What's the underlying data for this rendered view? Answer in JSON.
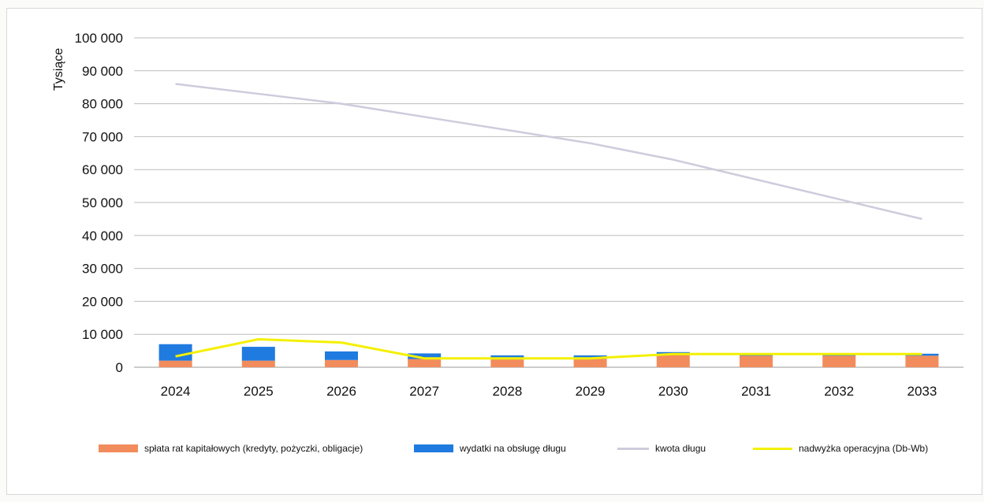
{
  "chart_data": {
    "type": "bar",
    "title": "",
    "xlabel": "",
    "ylabel": "Tysiące",
    "ylim": [
      0,
      100000
    ],
    "yticks": [
      0,
      10000,
      20000,
      30000,
      40000,
      50000,
      60000,
      70000,
      80000,
      90000,
      100000
    ],
    "ytick_labels": [
      "0",
      "10 000",
      "20 000",
      "30 000",
      "40 000",
      "50 000",
      "60 000",
      "70 000",
      "80 000",
      "90 000",
      "100 000"
    ],
    "categories": [
      "2024",
      "2025",
      "2026",
      "2027",
      "2028",
      "2029",
      "2030",
      "2031",
      "2032",
      "2033"
    ],
    "grid": true,
    "legend_position": "bottom",
    "series": [
      {
        "name": "spłata rat kapitałowych (kredyty, pożyczki, obligacje)",
        "type": "bar",
        "stack": "debt",
        "color": "#F28C5C",
        "values": [
          2000,
          2000,
          2200,
          2500,
          2500,
          2600,
          4000,
          3500,
          3500,
          3500
        ]
      },
      {
        "name": "wydatki na obsługę długu",
        "type": "bar",
        "stack": "debt",
        "color": "#1F7BE0",
        "values": [
          5000,
          4200,
          2600,
          1700,
          1100,
          1000,
          600,
          600,
          600,
          600
        ]
      },
      {
        "name": "kwota długu",
        "type": "line",
        "color": "#CFCBDC",
        "values": [
          86000,
          83000,
          80000,
          76000,
          72000,
          68000,
          63000,
          57000,
          51000,
          45000
        ]
      },
      {
        "name": "nadwyżka operacyjna (Db-Wb)",
        "type": "line",
        "color": "#F4F000",
        "values": [
          3300,
          8500,
          7500,
          2700,
          2700,
          2700,
          4000,
          4000,
          4000,
          4000
        ]
      }
    ]
  }
}
